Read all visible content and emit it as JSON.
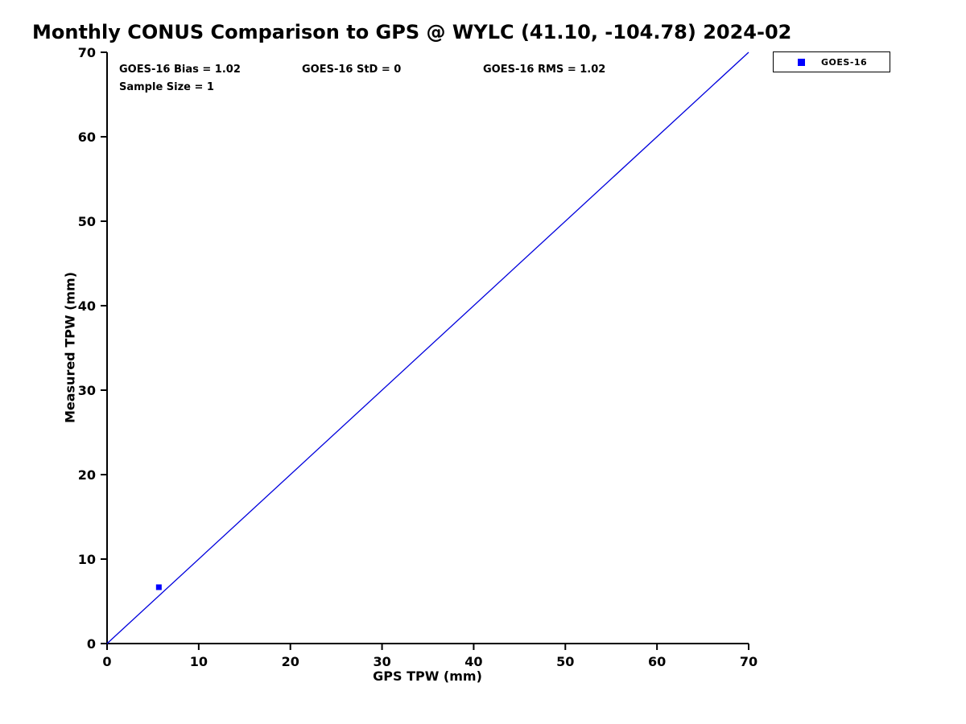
{
  "figure": {
    "background": "#ffffff"
  },
  "chart_data": {
    "type": "scatter",
    "title": "Monthly CONUS Comparison to GPS @ WYLC (41.10, -104.78) 2024-02",
    "xlabel": "GPS TPW (mm)",
    "ylabel": "Measured TPW (mm)",
    "xlim": [
      0,
      70
    ],
    "ylim": [
      0,
      70
    ],
    "xticks": [
      0,
      10,
      20,
      30,
      40,
      50,
      60,
      70
    ],
    "yticks": [
      0,
      10,
      20,
      30,
      40,
      50,
      60,
      70
    ],
    "grid": false,
    "axis_color": "#000000",
    "series": [
      {
        "name": "GOES-16",
        "marker": "square",
        "color": "#0000ff",
        "points": [
          {
            "x": 5.65,
            "y": 6.67
          }
        ]
      }
    ],
    "reference_line": {
      "from": [
        0,
        0
      ],
      "to": [
        70,
        70
      ],
      "color": "#0000dd"
    },
    "annotations": [
      {
        "text": "GOES-16 Bias = 1.02"
      },
      {
        "text": "GOES-16 StD = 0"
      },
      {
        "text": "GOES-16 RMS = 1.02"
      },
      {
        "text": "Sample Size = 1"
      }
    ],
    "stats": {
      "bias": 1.02,
      "std": 0,
      "rms": 1.02,
      "sample_size": 1
    },
    "legend": {
      "position": "top-right",
      "entries": [
        {
          "label": "GOES-16",
          "marker": "square",
          "color": "#0000ff"
        }
      ]
    }
  }
}
